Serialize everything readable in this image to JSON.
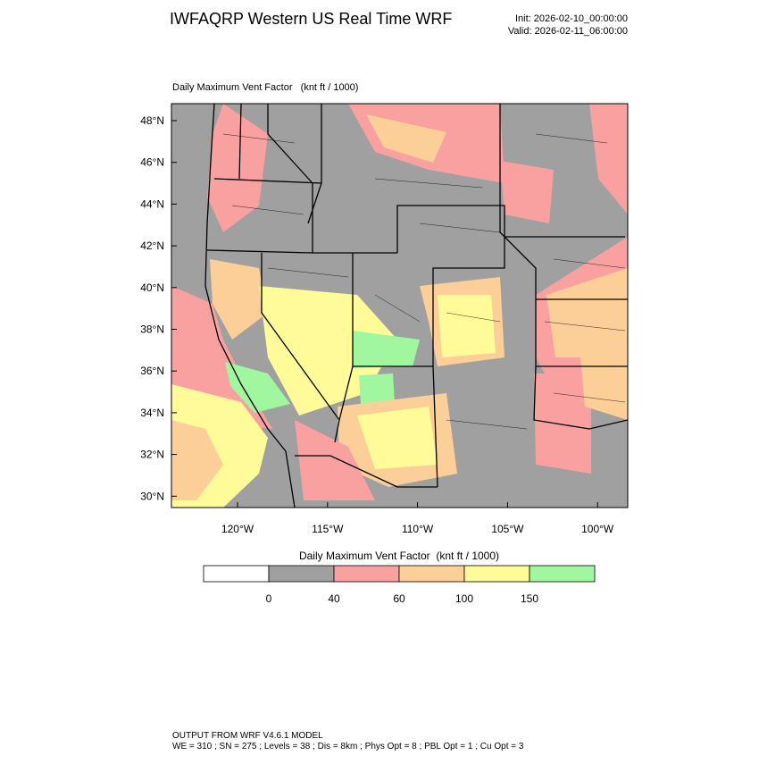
{
  "header": {
    "title": "IWFAQRP Western US Real Time WRF",
    "init": "Init: 2026-02-10_00:00:00",
    "valid": "Valid: 2026-02-11_06:00:00"
  },
  "map": {
    "title": "Daily Maximum Vent Factor   (knt ft / 1000)",
    "lat_labels": [
      "48°N",
      "46°N",
      "44°N",
      "42°N",
      "40°N",
      "38°N",
      "36°N",
      "34°N",
      "32°N",
      "30°N"
    ],
    "lon_labels": [
      "120°W",
      "115°W",
      "110°W",
      "105°W",
      "100°W"
    ]
  },
  "colorbar": {
    "title": "Daily Maximum Vent Factor  (knt ft / 1000)",
    "colors": [
      "#ffffff",
      "#a0a0a0",
      "#f9a0a0",
      "#fccf98",
      "#fffb98",
      "#a0f7a0"
    ],
    "ticks": [
      0,
      40,
      60,
      100,
      150
    ]
  },
  "footer": {
    "line1": "OUTPUT FROM WRF V4.6.1 MODEL",
    "line2": "WE = 310 ; SN = 275 ; Levels = 38 ; Dis = 8km ; Phys Opt = 8 ; PBL Opt = 1 ; Cu Opt = 3"
  }
}
